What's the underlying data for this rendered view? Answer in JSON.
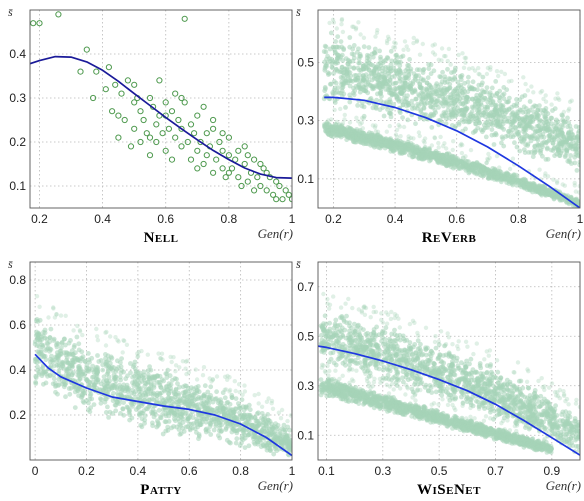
{
  "chart_data": [
    {
      "type": "scatter",
      "title": "Nell",
      "xlabel": "Gen(r)",
      "ylabel": "s̄",
      "xlim": [
        0.17,
        1.0
      ],
      "ylim": [
        0.05,
        0.5
      ],
      "xticks": [
        0.2,
        0.4,
        0.6,
        0.8,
        1
      ],
      "xtick_labels": [
        "0.2",
        "0.4",
        "0.6",
        "0.8",
        "1"
      ],
      "yticks": [
        0.1,
        0.2,
        0.3,
        0.4
      ],
      "ytick_labels": [
        "0.1",
        "0.2",
        "0.3",
        "0.4"
      ],
      "grid": true,
      "point_style": "hollow",
      "point_color": "#4f9a4f",
      "line_color": "#1a1a99",
      "scatter": {
        "x": [
          0.18,
          0.2,
          0.26,
          0.33,
          0.35,
          0.37,
          0.38,
          0.41,
          0.42,
          0.43,
          0.44,
          0.45,
          0.46,
          0.47,
          0.48,
          0.49,
          0.5,
          0.5,
          0.51,
          0.52,
          0.52,
          0.53,
          0.54,
          0.55,
          0.55,
          0.56,
          0.57,
          0.57,
          0.58,
          0.59,
          0.6,
          0.6,
          0.61,
          0.62,
          0.62,
          0.63,
          0.64,
          0.65,
          0.65,
          0.66,
          0.67,
          0.68,
          0.68,
          0.69,
          0.7,
          0.7,
          0.71,
          0.72,
          0.73,
          0.73,
          0.74,
          0.75,
          0.75,
          0.76,
          0.77,
          0.78,
          0.78,
          0.79,
          0.8,
          0.8,
          0.81,
          0.82,
          0.83,
          0.83,
          0.84,
          0.85,
          0.86,
          0.87,
          0.88,
          0.88,
          0.89,
          0.9,
          0.91,
          0.92,
          0.93,
          0.94,
          0.95,
          0.96,
          0.97,
          0.98,
          0.99,
          1.0,
          0.45,
          0.5,
          0.55,
          0.6,
          0.65,
          0.7,
          0.75,
          0.8,
          0.85,
          0.9,
          0.95,
          0.58,
          0.63,
          0.72,
          0.78,
          0.86,
          0.92,
          0.66
        ],
        "y": [
          0.47,
          0.47,
          0.49,
          0.36,
          0.41,
          0.3,
          0.36,
          0.32,
          0.37,
          0.27,
          0.33,
          0.21,
          0.31,
          0.25,
          0.34,
          0.19,
          0.29,
          0.23,
          0.3,
          0.2,
          0.27,
          0.25,
          0.22,
          0.3,
          0.17,
          0.28,
          0.24,
          0.2,
          0.26,
          0.22,
          0.29,
          0.18,
          0.23,
          0.27,
          0.16,
          0.21,
          0.25,
          0.19,
          0.23,
          0.48,
          0.2,
          0.24,
          0.16,
          0.22,
          0.18,
          0.26,
          0.2,
          0.15,
          0.22,
          0.17,
          0.19,
          0.13,
          0.23,
          0.16,
          0.2,
          0.14,
          0.18,
          0.12,
          0.17,
          0.21,
          0.14,
          0.16,
          0.12,
          0.18,
          0.1,
          0.15,
          0.11,
          0.13,
          0.09,
          0.16,
          0.12,
          0.1,
          0.14,
          0.09,
          0.12,
          0.08,
          0.11,
          0.1,
          0.07,
          0.09,
          0.08,
          0.07,
          0.26,
          0.33,
          0.21,
          0.26,
          0.3,
          0.14,
          0.25,
          0.13,
          0.19,
          0.15,
          0.07,
          0.34,
          0.31,
          0.28,
          0.22,
          0.17,
          0.13,
          0.29
        ]
      },
      "fit_line": {
        "x": [
          0.17,
          0.2,
          0.25,
          0.3,
          0.35,
          0.4,
          0.45,
          0.5,
          0.55,
          0.6,
          0.65,
          0.7,
          0.75,
          0.8,
          0.85,
          0.9,
          0.95,
          1.0
        ],
        "y": [
          0.378,
          0.385,
          0.394,
          0.393,
          0.382,
          0.363,
          0.338,
          0.31,
          0.283,
          0.256,
          0.23,
          0.205,
          0.181,
          0.16,
          0.141,
          0.127,
          0.119,
          0.118
        ]
      }
    },
    {
      "type": "scatter",
      "title": "ReVerb",
      "xlabel": "Gen(r)",
      "ylabel": "s̄",
      "xlim": [
        0.15,
        1.0
      ],
      "ylim": [
        0.0,
        0.68
      ],
      "xticks": [
        0.2,
        0.4,
        0.6,
        0.8,
        1
      ],
      "xtick_labels": [
        "0.2",
        "0.4",
        "0.6",
        "0.8",
        "1"
      ],
      "yticks": [
        0.1,
        0.3,
        0.5
      ],
      "ytick_labels": [
        "0.1",
        "0.3",
        "0.5"
      ],
      "grid": true,
      "point_style": "dense",
      "point_color": "#a6d3b8",
      "line_color": "#1e37e0",
      "bands": [
        {
          "upper": {
            "x": [
              0.17,
              0.3,
              0.5,
              0.7,
              0.85,
              1.0
            ],
            "y": [
              0.62,
              0.58,
              0.52,
              0.45,
              0.38,
              0.3
            ]
          },
          "lower": {
            "x": [
              0.17,
              0.3,
              0.5,
              0.7,
              0.85,
              1.0
            ],
            "y": [
              0.34,
              0.31,
              0.27,
              0.22,
              0.17,
              0.12
            ]
          }
        },
        {
          "upper": {
            "x": [
              0.17,
              0.4,
              0.6,
              0.8,
              1.0
            ],
            "y": [
              0.3,
              0.24,
              0.18,
              0.11,
              0.03
            ]
          },
          "lower": {
            "x": [
              0.17,
              0.4,
              0.6,
              0.8,
              1.0
            ],
            "y": [
              0.25,
              0.19,
              0.13,
              0.07,
              0.0
            ]
          }
        }
      ],
      "fit_line": {
        "x": [
          0.17,
          0.2,
          0.3,
          0.4,
          0.5,
          0.6,
          0.7,
          0.8,
          0.9,
          1.0
        ],
        "y": [
          0.38,
          0.38,
          0.37,
          0.345,
          0.31,
          0.265,
          0.21,
          0.145,
          0.075,
          0.0
        ]
      }
    },
    {
      "type": "scatter",
      "title": "Patty",
      "xlabel": "Gen(r)",
      "ylabel": "s̄",
      "xlim": [
        -0.02,
        1.0
      ],
      "ylim": [
        0.0,
        0.88
      ],
      "xticks": [
        0,
        0.2,
        0.4,
        0.6,
        0.8,
        1
      ],
      "xtick_labels": [
        "0",
        "0.2",
        "0.4",
        "0.6",
        "0.8",
        "1"
      ],
      "yticks": [
        0.2,
        0.4,
        0.6,
        0.8
      ],
      "ytick_labels": [
        "0.2",
        "0.4",
        "0.6",
        "0.8"
      ],
      "grid": true,
      "point_style": "dense",
      "point_color": "#a6d3b8",
      "line_color": "#1e37e0",
      "bands": [
        {
          "upper": {
            "x": [
              0.0,
              0.05,
              0.2,
              0.4,
              0.6,
              0.8,
              1.0
            ],
            "y": [
              0.68,
              0.62,
              0.54,
              0.45,
              0.37,
              0.28,
              0.14
            ]
          },
          "lower": {
            "x": [
              0.0,
              0.2,
              0.4,
              0.6,
              0.8,
              1.0
            ],
            "y": [
              0.32,
              0.2,
              0.13,
              0.09,
              0.05,
              0.0
            ]
          }
        }
      ],
      "fit_line": {
        "x": [
          0.0,
          0.05,
          0.1,
          0.2,
          0.3,
          0.4,
          0.5,
          0.6,
          0.7,
          0.8,
          0.9,
          1.0
        ],
        "y": [
          0.47,
          0.41,
          0.37,
          0.32,
          0.28,
          0.26,
          0.24,
          0.225,
          0.2,
          0.16,
          0.1,
          0.02
        ]
      }
    },
    {
      "type": "scatter",
      "title": "WiSeNet",
      "xlabel": "Gen(r)",
      "ylabel": "s̄",
      "xlim": [
        0.07,
        1.0
      ],
      "ylim": [
        0.0,
        0.8
      ],
      "xticks": [
        0.1,
        0.3,
        0.5,
        0.7,
        0.9
      ],
      "xtick_labels": [
        "0.1",
        "0.3",
        "0.5",
        "0.7",
        "0.9"
      ],
      "yticks": [
        0.1,
        0.3,
        0.5,
        0.7
      ],
      "ytick_labels": [
        "0.1",
        "0.3",
        "0.5",
        "0.7"
      ],
      "grid": true,
      "point_style": "dense",
      "point_color": "#a6d3b8",
      "line_color": "#1e37e0",
      "bands": [
        {
          "upper": {
            "x": [
              0.08,
              0.3,
              0.5,
              0.7,
              0.9,
              1.0
            ],
            "y": [
              0.62,
              0.55,
              0.47,
              0.38,
              0.26,
              0.18
            ]
          },
          "lower": {
            "x": [
              0.08,
              0.3,
              0.5,
              0.7,
              0.9,
              1.0
            ],
            "y": [
              0.37,
              0.31,
              0.24,
              0.16,
              0.08,
              0.02
            ]
          }
        },
        {
          "upper": {
            "x": [
              0.08,
              0.3,
              0.5,
              0.7,
              0.9
            ],
            "y": [
              0.34,
              0.27,
              0.2,
              0.13,
              0.07
            ]
          },
          "lower": {
            "x": [
              0.08,
              0.3,
              0.5,
              0.7,
              0.9
            ],
            "y": [
              0.26,
              0.2,
              0.14,
              0.08,
              0.02
            ]
          }
        }
      ],
      "fit_line": {
        "x": [
          0.07,
          0.1,
          0.2,
          0.3,
          0.4,
          0.5,
          0.6,
          0.7,
          0.8,
          0.9,
          1.0
        ],
        "y": [
          0.46,
          0.455,
          0.43,
          0.4,
          0.365,
          0.325,
          0.28,
          0.225,
          0.16,
          0.09,
          0.02
        ]
      }
    }
  ]
}
